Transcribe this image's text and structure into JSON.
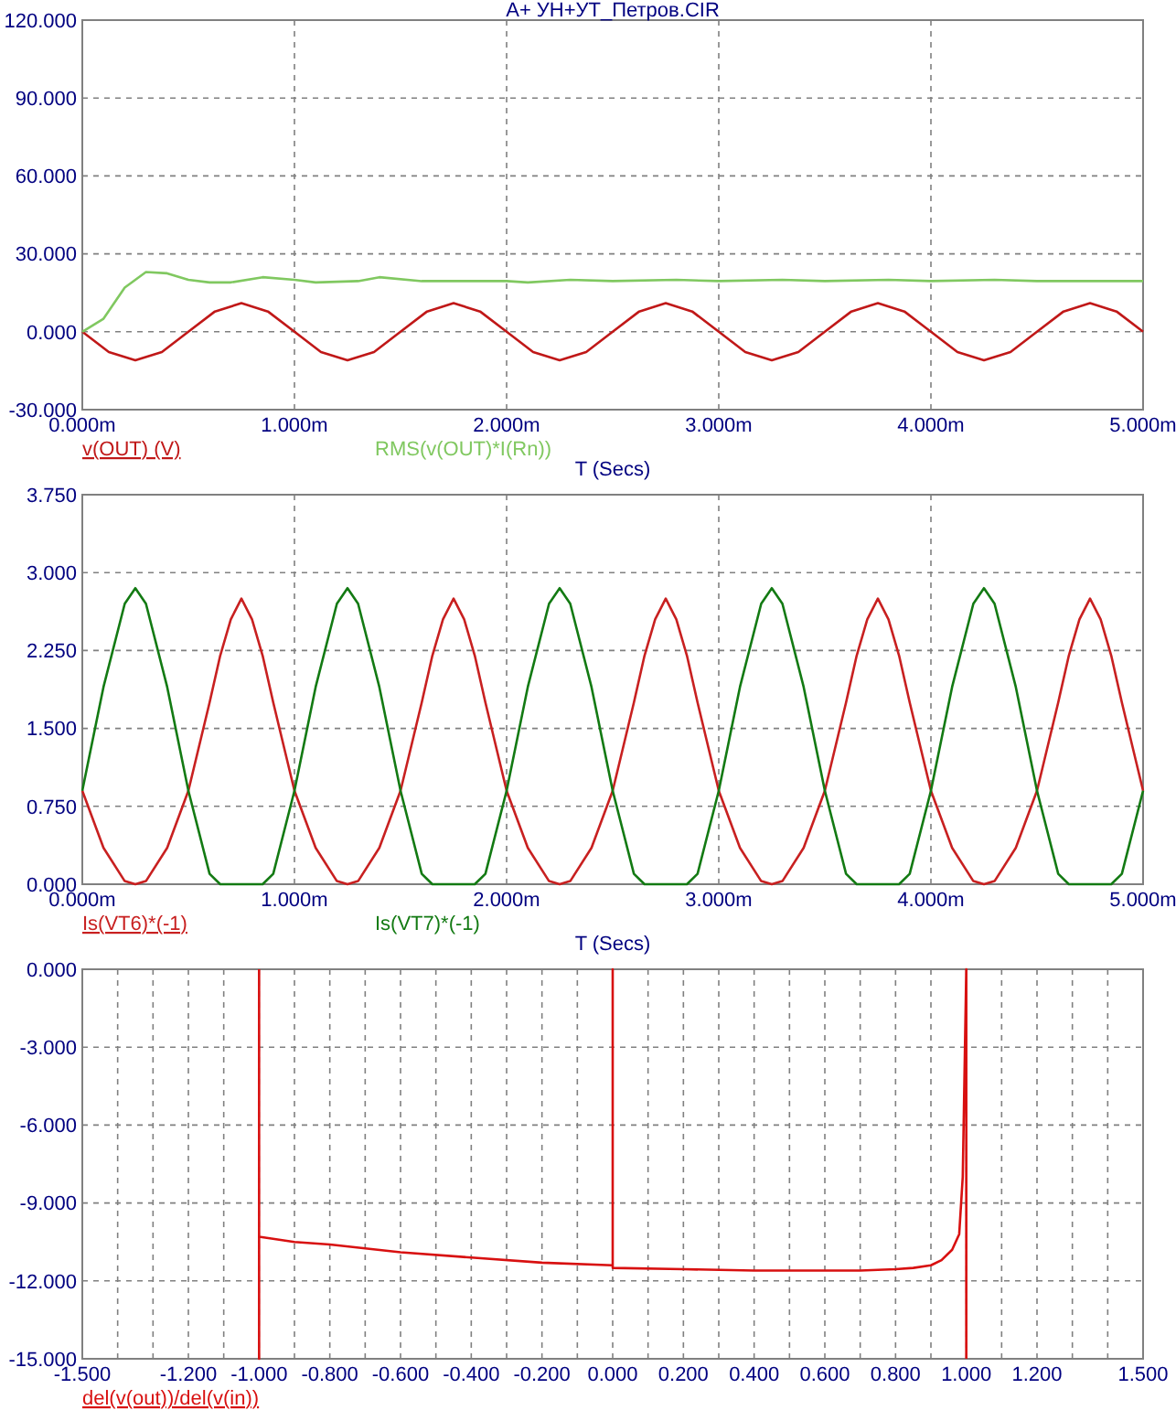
{
  "chart_data": [
    {
      "type": "line",
      "title": "A+ УН+УТ_Петров.CIR",
      "xlabel": "T (Secs)",
      "xlim": [
        0,
        5
      ],
      "ylim": [
        -30,
        120
      ],
      "grid": true,
      "legend": "bottom",
      "xticks": [
        {
          "value": 0,
          "label": "0.000m"
        },
        {
          "value": 1,
          "label": "1.000m"
        },
        {
          "value": 2,
          "label": "2.000m"
        },
        {
          "value": 3,
          "label": "3.000m"
        },
        {
          "value": 4,
          "label": "4.000m"
        },
        {
          "value": 5,
          "label": "5.000m"
        }
      ],
      "yticks": [
        {
          "value": -30,
          "label": "-30.000"
        },
        {
          "value": 0,
          "label": "0.000"
        },
        {
          "value": 30,
          "label": "30.000"
        },
        {
          "value": 60,
          "label": "60.000"
        },
        {
          "value": 90,
          "label": "90.000"
        },
        {
          "value": 120,
          "label": "120.000"
        }
      ],
      "series": [
        {
          "name": "v(OUT) (V)",
          "color": "#c01818",
          "x": [
            0,
            0.125,
            0.25,
            0.375,
            0.5,
            0.625,
            0.75,
            0.875,
            1,
            1.125,
            1.25,
            1.375,
            1.5,
            1.625,
            1.75,
            1.875,
            2,
            2.125,
            2.25,
            2.375,
            2.5,
            2.625,
            2.75,
            2.875,
            3,
            3.125,
            3.25,
            3.375,
            3.5,
            3.625,
            3.75,
            3.875,
            4,
            4.125,
            4.25,
            4.375,
            4.5,
            4.625,
            4.75,
            4.875,
            5
          ],
          "values": [
            0,
            -7.8,
            -11,
            -7.8,
            0,
            7.8,
            11,
            7.8,
            0,
            -7.8,
            -11,
            -7.8,
            0,
            7.8,
            11,
            7.8,
            0,
            -7.8,
            -11,
            -7.8,
            0,
            7.8,
            11,
            7.8,
            0,
            -7.8,
            -11,
            -7.8,
            0,
            7.8,
            11,
            7.8,
            0,
            -7.8,
            -11,
            -7.8,
            0,
            7.8,
            11,
            7.8,
            0
          ]
        },
        {
          "name": "RMS(v(OUT)*I(Rn))",
          "color": "#80c860",
          "x": [
            0,
            0.1,
            0.2,
            0.3,
            0.4,
            0.5,
            0.6,
            0.7,
            0.85,
            1,
            1.1,
            1.3,
            1.4,
            1.6,
            2,
            2.1,
            2.3,
            2.5,
            2.8,
            3,
            3.3,
            3.5,
            3.8,
            4,
            4.3,
            4.5,
            5
          ],
          "values": [
            0,
            5,
            17,
            23,
            22.5,
            20,
            19,
            19,
            21,
            20,
            19,
            19.5,
            21,
            19.5,
            19.5,
            19,
            20,
            19.5,
            20,
            19.5,
            20,
            19.5,
            20,
            19.5,
            20,
            19.5,
            19.5
          ]
        }
      ]
    },
    {
      "type": "line",
      "xlabel": "T (Secs)",
      "xlim": [
        0,
        5
      ],
      "ylim": [
        0,
        3.75
      ],
      "grid": true,
      "legend": "bottom",
      "xticks": [
        {
          "value": 0,
          "label": "0.000m"
        },
        {
          "value": 1,
          "label": "1.000m"
        },
        {
          "value": 2,
          "label": "2.000m"
        },
        {
          "value": 3,
          "label": "3.000m"
        },
        {
          "value": 4,
          "label": "4.000m"
        },
        {
          "value": 5,
          "label": "5.000m"
        }
      ],
      "yticks": [
        {
          "value": 0,
          "label": "0.000"
        },
        {
          "value": 0.75,
          "label": "0.750"
        },
        {
          "value": 1.5,
          "label": "1.500"
        },
        {
          "value": 2.25,
          "label": "2.250"
        },
        {
          "value": 3,
          "label": "3.000"
        },
        {
          "value": 3.75,
          "label": "3.750"
        }
      ],
      "x": [
        0,
        0.1,
        0.2,
        0.25,
        0.3,
        0.4,
        0.5,
        0.6,
        0.65,
        0.7,
        0.75,
        0.8,
        0.85,
        0.9,
        1,
        1.1,
        1.2,
        1.25,
        1.3,
        1.4,
        1.5,
        1.6,
        1.65,
        1.7,
        1.75,
        1.8,
        1.85,
        1.9,
        2,
        2.1,
        2.2,
        2.25,
        2.3,
        2.4,
        2.5,
        2.6,
        2.65,
        2.7,
        2.75,
        2.8,
        2.85,
        2.9,
        3,
        3.1,
        3.2,
        3.25,
        3.3,
        3.4,
        3.5,
        3.6,
        3.65,
        3.7,
        3.75,
        3.8,
        3.85,
        3.9,
        4,
        4.1,
        4.2,
        4.25,
        4.3,
        4.4,
        4.5,
        4.6,
        4.65,
        4.7,
        4.75,
        4.8,
        4.85,
        4.9,
        5
      ],
      "series": [
        {
          "name": "Is(VT6)*(-1)",
          "color": "#c82020",
          "values": [
            0.9,
            0.35,
            0.03,
            0,
            0.03,
            0.35,
            0.9,
            1.75,
            2.2,
            2.55,
            2.75,
            2.55,
            2.2,
            1.75,
            0.9,
            0.35,
            0.03,
            0,
            0.03,
            0.35,
            0.9,
            1.75,
            2.2,
            2.55,
            2.75,
            2.55,
            2.2,
            1.75,
            0.9,
            0.35,
            0.03,
            0,
            0.03,
            0.35,
            0.9,
            1.75,
            2.2,
            2.55,
            2.75,
            2.55,
            2.2,
            1.75,
            0.9,
            0.35,
            0.03,
            0,
            0.03,
            0.35,
            0.9,
            1.75,
            2.2,
            2.55,
            2.75,
            2.55,
            2.2,
            1.75,
            0.9,
            0.35,
            0.03,
            0,
            0.03,
            0.35,
            0.9,
            1.75,
            2.2,
            2.55,
            2.75,
            2.55,
            2.2,
            1.75,
            0.9
          ]
        },
        {
          "name": "Is(VT7)*(-1)",
          "color": "#137a13",
          "values": [
            0.9,
            1.9,
            2.7,
            2.85,
            2.7,
            1.9,
            0.9,
            0.1,
            0,
            0,
            0,
            0,
            0,
            0.1,
            0.9,
            1.9,
            2.7,
            2.85,
            2.7,
            1.9,
            0.9,
            0.1,
            0,
            0,
            0,
            0,
            0,
            0.1,
            0.9,
            1.9,
            2.7,
            2.85,
            2.7,
            1.9,
            0.9,
            0.1,
            0,
            0,
            0,
            0,
            0,
            0.1,
            0.9,
            1.9,
            2.7,
            2.85,
            2.7,
            1.9,
            0.9,
            0.1,
            0,
            0,
            0,
            0,
            0,
            0.1,
            0.9,
            1.9,
            2.7,
            2.85,
            2.7,
            1.9,
            0.9,
            0.1,
            0,
            0,
            0,
            0,
            0,
            0.1,
            0.9
          ]
        }
      ]
    },
    {
      "type": "line",
      "xlim": [
        -1.5,
        1.5
      ],
      "ylim": [
        -15,
        0
      ],
      "grid": true,
      "legend": "bottom",
      "xticks": [
        {
          "value": -1.5,
          "label": "-1.500"
        },
        {
          "value": -1.4,
          "label": null
        },
        {
          "value": -1.3,
          "label": null
        },
        {
          "value": -1.2,
          "label": "-1.200"
        },
        {
          "value": -1.1,
          "label": null
        },
        {
          "value": -1,
          "label": "-1.000"
        },
        {
          "value": -0.9,
          "label": null
        },
        {
          "value": -0.8,
          "label": "-0.800"
        },
        {
          "value": -0.7,
          "label": null
        },
        {
          "value": -0.6,
          "label": "-0.600"
        },
        {
          "value": -0.5,
          "label": null
        },
        {
          "value": -0.4,
          "label": "-0.400"
        },
        {
          "value": -0.3,
          "label": null
        },
        {
          "value": -0.2,
          "label": "-0.200"
        },
        {
          "value": -0.1,
          "label": null
        },
        {
          "value": 0,
          "label": "0.000"
        },
        {
          "value": 0.1,
          "label": null
        },
        {
          "value": 0.2,
          "label": "0.200"
        },
        {
          "value": 0.3,
          "label": null
        },
        {
          "value": 0.4,
          "label": "0.400"
        },
        {
          "value": 0.5,
          "label": null
        },
        {
          "value": 0.6,
          "label": "0.600"
        },
        {
          "value": 0.7,
          "label": null
        },
        {
          "value": 0.8,
          "label": "0.800"
        },
        {
          "value": 0.9,
          "label": null
        },
        {
          "value": 1,
          "label": "1.000"
        },
        {
          "value": 1.1,
          "label": null
        },
        {
          "value": 1.2,
          "label": "1.200"
        },
        {
          "value": 1.3,
          "label": null
        },
        {
          "value": 1.4,
          "label": null
        },
        {
          "value": 1.5,
          "label": "1.500"
        }
      ],
      "yticks": [
        {
          "value": -15,
          "label": "-15.000"
        },
        {
          "value": -12,
          "label": "-12.000"
        },
        {
          "value": -9,
          "label": "-9.000"
        },
        {
          "value": -6,
          "label": "-6.000"
        },
        {
          "value": -3,
          "label": "-3.000"
        },
        {
          "value": 0,
          "label": "0.000"
        }
      ],
      "series": [
        {
          "name": "del(v(out))/del(v(in))",
          "color": "#d81010",
          "x": [
            -1,
            -1,
            -1,
            -0.9,
            -0.8,
            -0.6,
            -0.4,
            -0.2,
            0,
            0,
            0,
            0.2,
            0.4,
            0.6,
            0.7,
            0.8,
            0.85,
            0.9,
            0.93,
            0.96,
            0.98,
            0.99,
            1,
            1
          ],
          "values": [
            0,
            -15,
            -10.3,
            -10.5,
            -10.6,
            -10.9,
            -11.1,
            -11.3,
            -11.4,
            0,
            -11.5,
            -11.55,
            -11.6,
            -11.6,
            -11.6,
            -11.55,
            -11.5,
            -11.4,
            -11.2,
            -10.8,
            -10.2,
            -8,
            0,
            -15
          ]
        }
      ]
    }
  ]
}
